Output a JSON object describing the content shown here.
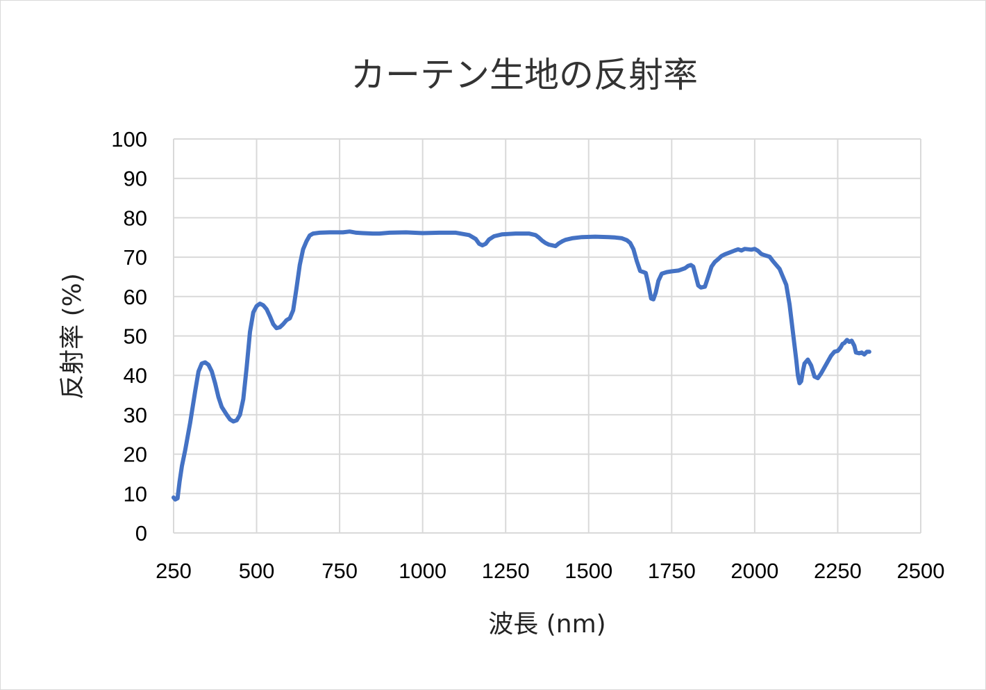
{
  "chart_data": {
    "type": "line",
    "title": "カーテン生地の反射率",
    "xlabel": "波長 (nm)",
    "ylabel": "反射率 (%)",
    "xlim": [
      250,
      2500
    ],
    "ylim": [
      0,
      100
    ],
    "xticks": [
      250,
      500,
      750,
      1000,
      1250,
      1500,
      1750,
      2000,
      2250,
      2500
    ],
    "yticks": [
      0,
      10,
      20,
      30,
      40,
      50,
      60,
      70,
      80,
      90,
      100
    ],
    "grid": true,
    "legend": "none",
    "series": [
      {
        "color": "#4472c4",
        "points": [
          [
            250,
            9
          ],
          [
            255,
            8.5
          ],
          [
            262,
            8.8
          ],
          [
            268,
            13
          ],
          [
            275,
            17
          ],
          [
            285,
            21
          ],
          [
            300,
            28
          ],
          [
            315,
            36
          ],
          [
            325,
            41
          ],
          [
            335,
            43
          ],
          [
            345,
            43.3
          ],
          [
            355,
            42.7
          ],
          [
            365,
            41
          ],
          [
            375,
            38
          ],
          [
            385,
            34.5
          ],
          [
            395,
            32
          ],
          [
            410,
            30
          ],
          [
            420,
            28.8
          ],
          [
            430,
            28.3
          ],
          [
            440,
            28.6
          ],
          [
            450,
            30
          ],
          [
            460,
            34
          ],
          [
            470,
            42
          ],
          [
            480,
            51
          ],
          [
            490,
            56
          ],
          [
            500,
            57.6
          ],
          [
            510,
            58.2
          ],
          [
            520,
            57.8
          ],
          [
            530,
            56.8
          ],
          [
            540,
            55
          ],
          [
            550,
            53
          ],
          [
            560,
            52
          ],
          [
            570,
            52.2
          ],
          [
            580,
            53
          ],
          [
            590,
            54
          ],
          [
            600,
            54.5
          ],
          [
            610,
            56.5
          ],
          [
            620,
            62
          ],
          [
            630,
            68
          ],
          [
            640,
            72
          ],
          [
            650,
            74
          ],
          [
            660,
            75.5
          ],
          [
            670,
            76
          ],
          [
            690,
            76.2
          ],
          [
            720,
            76.3
          ],
          [
            760,
            76.3
          ],
          [
            780,
            76.5
          ],
          [
            800,
            76.2
          ],
          [
            820,
            76.1
          ],
          [
            850,
            76
          ],
          [
            870,
            76
          ],
          [
            900,
            76.2
          ],
          [
            950,
            76.3
          ],
          [
            1000,
            76.1
          ],
          [
            1050,
            76.2
          ],
          [
            1100,
            76.2
          ],
          [
            1140,
            75.6
          ],
          [
            1160,
            74.6
          ],
          [
            1170,
            73.4
          ],
          [
            1180,
            73
          ],
          [
            1190,
            73.4
          ],
          [
            1200,
            74.5
          ],
          [
            1215,
            75.3
          ],
          [
            1240,
            75.8
          ],
          [
            1280,
            76
          ],
          [
            1320,
            76
          ],
          [
            1340,
            75.6
          ],
          [
            1350,
            75
          ],
          [
            1360,
            74.2
          ],
          [
            1370,
            73.6
          ],
          [
            1380,
            73.2
          ],
          [
            1390,
            73
          ],
          [
            1400,
            72.8
          ],
          [
            1410,
            73.5
          ],
          [
            1420,
            74
          ],
          [
            1430,
            74.4
          ],
          [
            1450,
            74.8
          ],
          [
            1480,
            75.1
          ],
          [
            1520,
            75.2
          ],
          [
            1560,
            75.1
          ],
          [
            1580,
            75
          ],
          [
            1600,
            74.8
          ],
          [
            1615,
            74.3
          ],
          [
            1625,
            73.6
          ],
          [
            1635,
            72
          ],
          [
            1645,
            69
          ],
          [
            1655,
            66.5
          ],
          [
            1665,
            66.2
          ],
          [
            1672,
            66
          ],
          [
            1680,
            63
          ],
          [
            1688,
            59.5
          ],
          [
            1695,
            59.3
          ],
          [
            1702,
            61
          ],
          [
            1710,
            64
          ],
          [
            1720,
            65.8
          ],
          [
            1735,
            66.2
          ],
          [
            1750,
            66.4
          ],
          [
            1770,
            66.6
          ],
          [
            1790,
            67.2
          ],
          [
            1800,
            67.8
          ],
          [
            1808,
            68
          ],
          [
            1815,
            67.6
          ],
          [
            1822,
            65.4
          ],
          [
            1830,
            62.8
          ],
          [
            1838,
            62.3
          ],
          [
            1850,
            62.5
          ],
          [
            1860,
            65
          ],
          [
            1870,
            67.6
          ],
          [
            1880,
            68.8
          ],
          [
            1890,
            69.5
          ],
          [
            1900,
            70.3
          ],
          [
            1910,
            70.7
          ],
          [
            1925,
            71.2
          ],
          [
            1940,
            71.7
          ],
          [
            1950,
            72
          ],
          [
            1960,
            71.7
          ],
          [
            1970,
            72.1
          ],
          [
            1990,
            71.9
          ],
          [
            2000,
            72.1
          ],
          [
            2010,
            71.6
          ],
          [
            2020,
            70.8
          ],
          [
            2030,
            70.5
          ],
          [
            2045,
            70.1
          ],
          [
            2055,
            69
          ],
          [
            2065,
            68
          ],
          [
            2075,
            67
          ],
          [
            2085,
            65
          ],
          [
            2095,
            63
          ],
          [
            2105,
            58
          ],
          [
            2115,
            51
          ],
          [
            2125,
            44
          ],
          [
            2130,
            40
          ],
          [
            2135,
            38
          ],
          [
            2140,
            38.5
          ],
          [
            2145,
            41
          ],
          [
            2150,
            43
          ],
          [
            2160,
            44
          ],
          [
            2170,
            42.5
          ],
          [
            2180,
            39.7
          ],
          [
            2190,
            39.3
          ],
          [
            2200,
            40.5
          ],
          [
            2210,
            42
          ],
          [
            2220,
            43.5
          ],
          [
            2230,
            45
          ],
          [
            2240,
            46
          ],
          [
            2250,
            46.2
          ],
          [
            2258,
            47
          ],
          [
            2265,
            48
          ],
          [
            2270,
            48.2
          ],
          [
            2278,
            49
          ],
          [
            2285,
            48.5
          ],
          [
            2292,
            48.8
          ],
          [
            2300,
            47.5
          ],
          [
            2305,
            45.8
          ],
          [
            2315,
            45.6
          ],
          [
            2322,
            45.8
          ],
          [
            2330,
            45.3
          ],
          [
            2338,
            46
          ],
          [
            2345,
            46
          ]
        ]
      }
    ]
  }
}
